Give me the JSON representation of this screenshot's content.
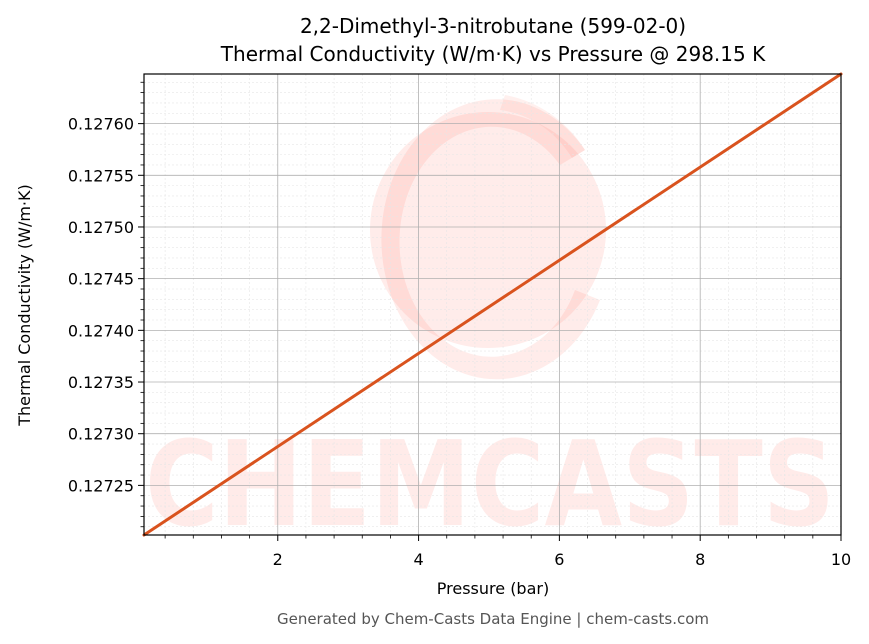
{
  "chart_data": {
    "type": "line",
    "title_line1": "2,2-Dimethyl-3-nitrobutane (599-02-0)",
    "title_line2": "Thermal Conductivity (W/m·K) vs Pressure @ 298.15 K",
    "xlabel": "Pressure (bar)",
    "ylabel": "Thermal Conductivity (W/m·K)",
    "xlim": [
      0.1,
      10
    ],
    "ylim": [
      0.127202,
      0.127648
    ],
    "xticks": [
      2,
      4,
      6,
      8,
      10
    ],
    "xtick_labels": [
      "2",
      "4",
      "6",
      "8",
      "10"
    ],
    "yticks": [
      0.12725,
      0.1273,
      0.12735,
      0.1274,
      0.12745,
      0.1275,
      0.12755,
      0.1276
    ],
    "ytick_labels": [
      "0.12725",
      "0.12730",
      "0.12735",
      "0.12740",
      "0.12745",
      "0.12750",
      "0.12755",
      "0.12760"
    ],
    "grid": true,
    "series": [
      {
        "color": "#d9531e",
        "x": [
          0.1,
          10
        ],
        "y": [
          0.127202,
          0.127648
        ]
      }
    ]
  },
  "watermark": {
    "text": "CHEMCASTS",
    "color": "#ff6b5b"
  },
  "footer": "Generated by Chem-Casts Data Engine | chem-casts.com"
}
